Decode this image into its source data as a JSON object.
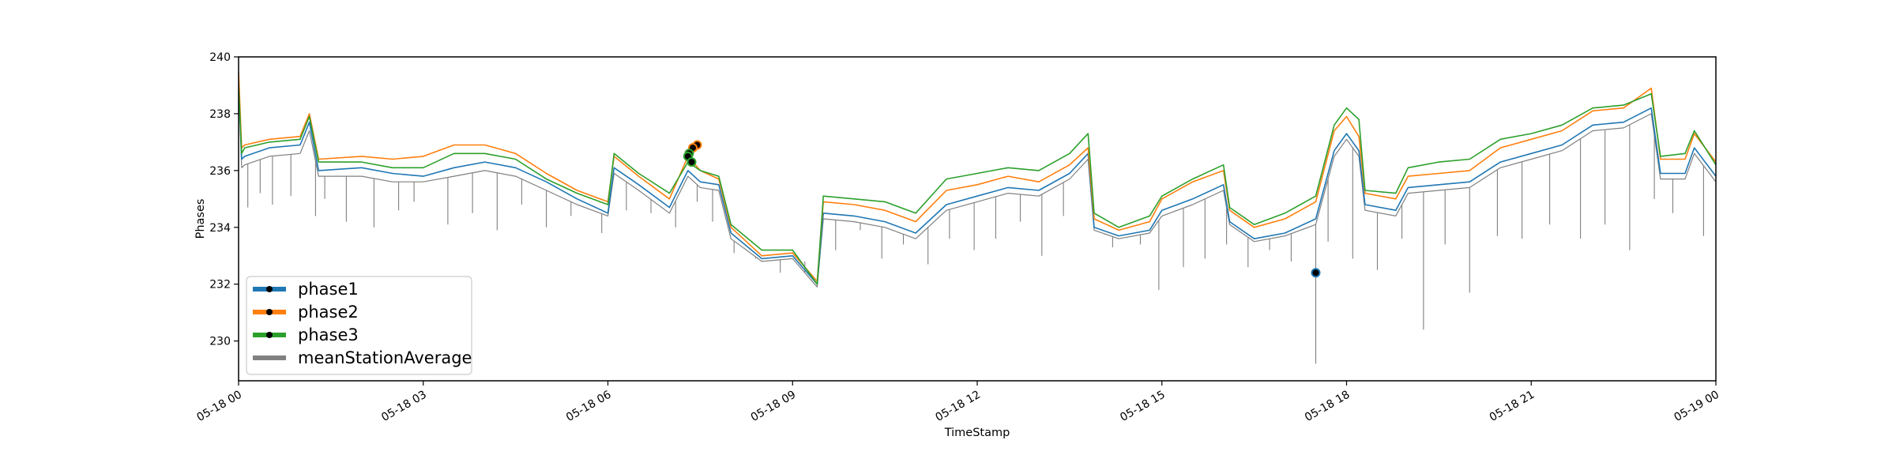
{
  "chart_data": {
    "type": "line",
    "xlabel": "TimeStamp",
    "ylabel": "Phases",
    "xlim": [
      0,
      24
    ],
    "ylim": [
      228.6,
      240
    ],
    "x_unit": "hours since 05-18 00:00",
    "x_ticks": [
      0,
      3,
      6,
      9,
      12,
      15,
      18,
      21,
      24
    ],
    "x_tick_labels": [
      "05-18 00",
      "05-18 03",
      "05-18 06",
      "05-18 09",
      "05-18 12",
      "05-18 15",
      "05-18 18",
      "05-18 21",
      "05-19 00"
    ],
    "y_ticks": [
      230,
      232,
      234,
      236,
      238,
      240
    ],
    "y_tick_labels": [
      "230",
      "232",
      "234",
      "236",
      "238",
      "240"
    ],
    "grid": false,
    "legend_position": "lower-left",
    "series": [
      {
        "name": "phase1",
        "color": "#1f77b4",
        "x": [
          0,
          0.05,
          0.1,
          0.5,
          1.0,
          1.15,
          1.3,
          2.0,
          2.5,
          3.0,
          3.5,
          4.0,
          4.5,
          5.0,
          5.5,
          6.0,
          6.1,
          6.5,
          7.0,
          7.3,
          7.5,
          7.8,
          8.0,
          8.5,
          9.0,
          9.4,
          9.5,
          10.0,
          10.5,
          11.0,
          11.5,
          12.0,
          12.5,
          13.0,
          13.5,
          13.8,
          13.9,
          14.3,
          14.8,
          15.0,
          15.5,
          16.0,
          16.1,
          16.5,
          17.0,
          17.5,
          17.8,
          18.0,
          18.2,
          18.3,
          18.8,
          19.0,
          19.5,
          20.0,
          20.5,
          21.0,
          21.5,
          22.0,
          22.5,
          22.95,
          23.1,
          23.5,
          23.65,
          24.0
        ],
        "y": [
          239.2,
          236.4,
          236.5,
          236.8,
          236.9,
          237.7,
          236.0,
          236.1,
          235.9,
          235.8,
          236.1,
          236.3,
          236.1,
          235.6,
          235.0,
          234.5,
          236.1,
          235.5,
          234.7,
          236.0,
          235.6,
          235.5,
          233.8,
          232.9,
          233.0,
          232.0,
          234.5,
          234.4,
          234.2,
          233.8,
          234.8,
          235.1,
          235.4,
          235.3,
          235.9,
          236.6,
          234.0,
          233.7,
          233.9,
          234.6,
          235.0,
          235.5,
          234.2,
          233.6,
          233.8,
          234.3,
          236.7,
          237.3,
          236.7,
          234.8,
          234.6,
          235.4,
          235.5,
          235.6,
          236.3,
          236.6,
          236.9,
          237.6,
          237.7,
          238.2,
          235.9,
          235.9,
          236.8,
          235.8
        ]
      },
      {
        "name": "phase2",
        "color": "#ff7f0e",
        "x": [
          0,
          0.05,
          0.1,
          0.5,
          1.0,
          1.15,
          1.3,
          2.0,
          2.5,
          3.0,
          3.5,
          4.0,
          4.5,
          5.0,
          5.5,
          6.0,
          6.1,
          6.5,
          7.0,
          7.3,
          7.5,
          7.8,
          8.0,
          8.5,
          9.0,
          9.4,
          9.5,
          10.0,
          10.5,
          11.0,
          11.5,
          12.0,
          12.5,
          13.0,
          13.5,
          13.8,
          13.9,
          14.3,
          14.8,
          15.0,
          15.5,
          16.0,
          16.1,
          16.5,
          17.0,
          17.5,
          17.8,
          18.0,
          18.2,
          18.3,
          18.8,
          19.0,
          19.5,
          20.0,
          20.5,
          21.0,
          21.5,
          22.0,
          22.5,
          22.95,
          23.1,
          23.5,
          23.65,
          24.0
        ],
        "y": [
          239.5,
          236.8,
          236.9,
          237.1,
          237.2,
          238.0,
          236.4,
          236.5,
          236.4,
          236.5,
          236.9,
          236.9,
          236.6,
          235.9,
          235.3,
          234.9,
          236.5,
          235.8,
          235.0,
          236.5,
          236.0,
          235.7,
          234.0,
          233.0,
          233.1,
          232.1,
          234.9,
          234.8,
          234.6,
          234.2,
          235.3,
          235.5,
          235.8,
          235.6,
          236.2,
          236.8,
          234.3,
          233.9,
          234.2,
          235.0,
          235.6,
          236.0,
          234.6,
          234.0,
          234.3,
          234.9,
          237.4,
          237.9,
          237.2,
          235.2,
          235.0,
          235.8,
          235.9,
          236.0,
          236.8,
          237.1,
          237.4,
          238.1,
          238.2,
          238.9,
          236.4,
          236.4,
          237.3,
          236.3
        ]
      },
      {
        "name": "phase3",
        "color": "#2ca02c",
        "x": [
          0,
          0.05,
          0.1,
          0.5,
          1.0,
          1.15,
          1.3,
          2.0,
          2.5,
          3.0,
          3.5,
          4.0,
          4.5,
          5.0,
          5.5,
          6.0,
          6.1,
          6.5,
          7.0,
          7.3,
          7.5,
          7.8,
          8.0,
          8.5,
          9.0,
          9.4,
          9.5,
          10.0,
          10.5,
          11.0,
          11.5,
          12.0,
          12.5,
          13.0,
          13.5,
          13.8,
          13.9,
          14.3,
          14.8,
          15.0,
          15.5,
          16.0,
          16.1,
          16.5,
          17.0,
          17.5,
          17.8,
          18.0,
          18.2,
          18.3,
          18.8,
          19.0,
          19.5,
          20.0,
          20.5,
          21.0,
          21.5,
          22.0,
          22.5,
          22.95,
          23.1,
          23.5,
          23.65,
          24.0
        ],
        "y": [
          239.0,
          236.6,
          236.8,
          237.0,
          237.1,
          237.9,
          236.3,
          236.3,
          236.1,
          236.1,
          236.6,
          236.6,
          236.4,
          235.7,
          235.2,
          234.8,
          236.6,
          235.9,
          235.2,
          236.3,
          236.0,
          235.8,
          234.1,
          233.2,
          233.2,
          232.0,
          235.1,
          235.0,
          234.9,
          234.5,
          235.7,
          235.9,
          236.1,
          236.0,
          236.6,
          237.3,
          234.5,
          234.0,
          234.4,
          235.1,
          235.7,
          236.2,
          234.7,
          234.1,
          234.5,
          235.1,
          237.6,
          238.2,
          237.8,
          235.3,
          235.2,
          236.1,
          236.3,
          236.4,
          237.1,
          237.3,
          237.6,
          238.2,
          238.3,
          238.7,
          236.5,
          236.6,
          237.4,
          236.2
        ]
      },
      {
        "name": "meanStationAverage",
        "color": "#808080",
        "x": [
          0,
          0.05,
          0.1,
          0.5,
          1.0,
          1.15,
          1.3,
          2.0,
          2.5,
          3.0,
          3.5,
          4.0,
          4.5,
          5.0,
          5.5,
          6.0,
          6.1,
          6.5,
          7.0,
          7.3,
          7.5,
          7.8,
          8.0,
          8.5,
          9.0,
          9.4,
          9.5,
          10.0,
          10.5,
          11.0,
          11.5,
          12.0,
          12.5,
          13.0,
          13.5,
          13.8,
          13.9,
          14.3,
          14.8,
          15.0,
          15.5,
          16.0,
          16.1,
          16.5,
          17.0,
          17.5,
          17.8,
          18.0,
          18.2,
          18.3,
          18.8,
          19.0,
          19.5,
          20.0,
          20.5,
          21.0,
          21.5,
          22.0,
          22.5,
          22.95,
          23.1,
          23.5,
          23.65,
          24.0
        ],
        "y": [
          239.0,
          236.1,
          236.2,
          236.5,
          236.6,
          237.4,
          235.8,
          235.8,
          235.6,
          235.6,
          235.8,
          236.0,
          235.8,
          235.3,
          234.8,
          234.4,
          235.9,
          235.3,
          234.5,
          235.8,
          235.4,
          235.3,
          233.6,
          232.8,
          232.9,
          231.9,
          234.3,
          234.2,
          234.0,
          233.6,
          234.6,
          234.9,
          235.2,
          235.1,
          235.7,
          236.4,
          233.9,
          233.6,
          233.8,
          234.4,
          234.8,
          235.3,
          234.1,
          233.5,
          233.7,
          234.1,
          236.5,
          237.1,
          236.5,
          234.6,
          234.4,
          235.2,
          235.3,
          235.4,
          236.1,
          236.4,
          236.7,
          237.4,
          237.5,
          238.0,
          235.7,
          235.7,
          236.6,
          235.6
        ],
        "dips": [
          {
            "x": 0.15,
            "y": 234.7
          },
          {
            "x": 0.35,
            "y": 235.2
          },
          {
            "x": 0.55,
            "y": 234.8
          },
          {
            "x": 0.85,
            "y": 235.1
          },
          {
            "x": 1.25,
            "y": 234.4
          },
          {
            "x": 1.4,
            "y": 235.0
          },
          {
            "x": 1.75,
            "y": 234.2
          },
          {
            "x": 2.2,
            "y": 234.0
          },
          {
            "x": 2.6,
            "y": 234.6
          },
          {
            "x": 2.85,
            "y": 234.9
          },
          {
            "x": 3.4,
            "y": 234.1
          },
          {
            "x": 3.8,
            "y": 234.5
          },
          {
            "x": 4.2,
            "y": 233.9
          },
          {
            "x": 4.6,
            "y": 234.8
          },
          {
            "x": 5.0,
            "y": 234.0
          },
          {
            "x": 5.4,
            "y": 234.4
          },
          {
            "x": 5.9,
            "y": 233.8
          },
          {
            "x": 6.3,
            "y": 234.6
          },
          {
            "x": 6.7,
            "y": 234.5
          },
          {
            "x": 7.1,
            "y": 234.0
          },
          {
            "x": 7.45,
            "y": 234.9
          },
          {
            "x": 7.7,
            "y": 234.2
          },
          {
            "x": 8.05,
            "y": 233.1
          },
          {
            "x": 8.4,
            "y": 232.9
          },
          {
            "x": 8.8,
            "y": 232.4
          },
          {
            "x": 9.2,
            "y": 232.8
          },
          {
            "x": 9.7,
            "y": 233.2
          },
          {
            "x": 10.1,
            "y": 233.9
          },
          {
            "x": 10.45,
            "y": 232.9
          },
          {
            "x": 10.8,
            "y": 233.4
          },
          {
            "x": 11.2,
            "y": 232.7
          },
          {
            "x": 11.55,
            "y": 233.6
          },
          {
            "x": 11.95,
            "y": 233.2
          },
          {
            "x": 12.3,
            "y": 233.6
          },
          {
            "x": 12.7,
            "y": 234.2
          },
          {
            "x": 13.05,
            "y": 233.0
          },
          {
            "x": 13.4,
            "y": 234.4
          },
          {
            "x": 14.2,
            "y": 233.3
          },
          {
            "x": 14.65,
            "y": 233.4
          },
          {
            "x": 14.95,
            "y": 231.8
          },
          {
            "x": 15.35,
            "y": 232.6
          },
          {
            "x": 15.7,
            "y": 232.9
          },
          {
            "x": 16.05,
            "y": 233.4
          },
          {
            "x": 16.4,
            "y": 232.6
          },
          {
            "x": 16.75,
            "y": 233.2
          },
          {
            "x": 17.1,
            "y": 232.8
          },
          {
            "x": 17.5,
            "y": 229.2
          },
          {
            "x": 17.7,
            "y": 233.5
          },
          {
            "x": 18.1,
            "y": 232.9
          },
          {
            "x": 18.5,
            "y": 232.5
          },
          {
            "x": 18.9,
            "y": 233.6
          },
          {
            "x": 19.25,
            "y": 230.4
          },
          {
            "x": 19.6,
            "y": 233.4
          },
          {
            "x": 20.0,
            "y": 231.7
          },
          {
            "x": 20.45,
            "y": 233.7
          },
          {
            "x": 20.85,
            "y": 233.6
          },
          {
            "x": 21.3,
            "y": 234.1
          },
          {
            "x": 21.8,
            "y": 233.6
          },
          {
            "x": 22.2,
            "y": 234.1
          },
          {
            "x": 22.6,
            "y": 233.2
          },
          {
            "x": 23.0,
            "y": 235.0
          },
          {
            "x": 23.3,
            "y": 234.5
          },
          {
            "x": 23.8,
            "y": 233.7
          }
        ]
      }
    ],
    "markers": [
      {
        "series": "phase2",
        "x": 7.45,
        "y": 236.9,
        "fill": "#000000",
        "edge": "#ff7f0e"
      },
      {
        "series": "phase2",
        "x": 7.38,
        "y": 236.8,
        "fill": "#000000",
        "edge": "#ff7f0e"
      },
      {
        "series": "phase3",
        "x": 7.32,
        "y": 236.6,
        "fill": "#000000",
        "edge": "#2ca02c"
      },
      {
        "series": "phase3",
        "x": 7.3,
        "y": 236.5,
        "fill": "#000000",
        "edge": "#2ca02c"
      },
      {
        "series": "phase3",
        "x": 7.36,
        "y": 236.3,
        "fill": "#000000",
        "edge": "#2ca02c"
      },
      {
        "series": "phase1",
        "x": 17.5,
        "y": 232.4,
        "fill": "#000000",
        "edge": "#1f77b4"
      }
    ]
  }
}
